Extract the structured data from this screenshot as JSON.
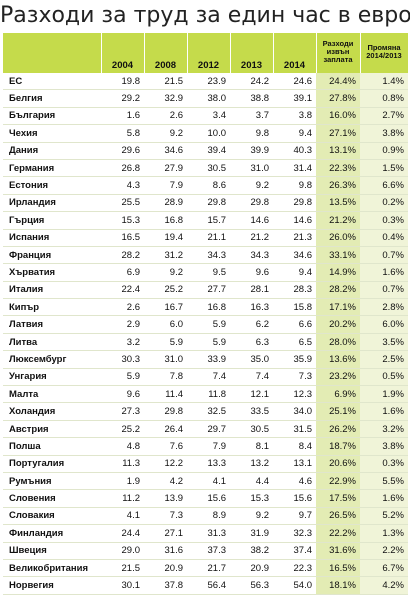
{
  "title": "Разходи за труд за един час в евро",
  "columns": [
    "",
    "2004",
    "2008",
    "2012",
    "2013",
    "2014",
    "Разходи извън заплата",
    "Промяна 2014/2013"
  ],
  "rows": [
    [
      "ЕС",
      "19.8",
      "21.5",
      "23.9",
      "24.2",
      "24.6",
      "24.4%",
      "1.4%"
    ],
    [
      "Белгия",
      "29.2",
      "32.9",
      "38.0",
      "38.8",
      "39.1",
      "27.8%",
      "0.8%"
    ],
    [
      "България",
      "1.6",
      "2.6",
      "3.4",
      "3.7",
      "3.8",
      "16.0%",
      "2.7%"
    ],
    [
      "Чехия",
      "5.8",
      "9.2",
      "10.0",
      "9.8",
      "9.4",
      "27.1%",
      "3.8%"
    ],
    [
      "Дания",
      "29.6",
      "34.6",
      "39.4",
      "39.9",
      "40.3",
      "13.1%",
      "0.9%"
    ],
    [
      "Германия",
      "26.8",
      "27.9",
      "30.5",
      "31.0",
      "31.4",
      "22.3%",
      "1.5%"
    ],
    [
      "Естония",
      "4.3",
      "7.9",
      "8.6",
      "9.2",
      "9.8",
      "26.3%",
      "6.6%"
    ],
    [
      "Ирландия",
      "25.5",
      "28.9",
      "29.8",
      "29.8",
      "29.8",
      "13.5%",
      "0.2%"
    ],
    [
      "Гърция",
      "15.3",
      "16.8",
      "15.7",
      "14.6",
      "14.6",
      "21.2%",
      "0.3%"
    ],
    [
      "Испания",
      "16.5",
      "19.4",
      "21.1",
      "21.2",
      "21.3",
      "26.0%",
      "0.4%"
    ],
    [
      "Франция",
      "28.2",
      "31.2",
      "34.3",
      "34.3",
      "34.6",
      "33.1%",
      "0.7%"
    ],
    [
      "Хърватия",
      "6.9",
      "9.2",
      "9.5",
      "9.6",
      "9.4",
      "14.9%",
      "1.6%"
    ],
    [
      "Италия",
      "22.4",
      "25.2",
      "27.7",
      "28.1",
      "28.3",
      "28.2%",
      "0.7%"
    ],
    [
      "Кипър",
      "2.6",
      "16.7",
      "16.8",
      "16.3",
      "15.8",
      "17.1%",
      "2.8%"
    ],
    [
      "Латвия",
      "2.9",
      "6.0",
      "5.9",
      "6.2",
      "6.6",
      "20.2%",
      "6.0%"
    ],
    [
      "Литва",
      "3.2",
      "5.9",
      "5.9",
      "6.3",
      "6.5",
      "28.0%",
      "3.5%"
    ],
    [
      "Люксембург",
      "30.3",
      "31.0",
      "33.9",
      "35.0",
      "35.9",
      "13.6%",
      "2.5%"
    ],
    [
      "Унгария",
      "5.9",
      "7.8",
      "7.4",
      "7.4",
      "7.3",
      "23.2%",
      "0.5%"
    ],
    [
      "Малта",
      "9.6",
      "11.4",
      "11.8",
      "12.1",
      "12.3",
      "6.9%",
      "1.9%"
    ],
    [
      "Холандия",
      "27.3",
      "29.8",
      "32.5",
      "33.5",
      "34.0",
      "25.1%",
      "1.6%"
    ],
    [
      "Австрия",
      "25.2",
      "26.4",
      "29.7",
      "30.5",
      "31.5",
      "26.2%",
      "3.2%"
    ],
    [
      "Полша",
      "4.8",
      "7.6",
      "7.9",
      "8.1",
      "8.4",
      "18.7%",
      "3.8%"
    ],
    [
      "Португалия",
      "11.3",
      "12.2",
      "13.3",
      "13.2",
      "13.1",
      "20.6%",
      "0.3%"
    ],
    [
      "Румъния",
      "1.9",
      "4.2",
      "4.1",
      "4.4",
      "4.6",
      "22.9%",
      "5.5%"
    ],
    [
      "Словения",
      "11.2",
      "13.9",
      "15.6",
      "15.3",
      "15.6",
      "17.5%",
      "1.6%"
    ],
    [
      "Словакия",
      "4.1",
      "7.3",
      "8.9",
      "9.2",
      "9.7",
      "26.5%",
      "5.2%"
    ],
    [
      "Финландия",
      "24.4",
      "27.1",
      "31.3",
      "31.9",
      "32.3",
      "22.2%",
      "1.3%"
    ],
    [
      "Швеция",
      "29.0",
      "31.6",
      "37.3",
      "38.2",
      "37.4",
      "31.6%",
      "2.2%"
    ],
    [
      "Великобритания",
      "21.5",
      "20.9",
      "21.7",
      "20.9",
      "22.3",
      "16.5%",
      "6.7%"
    ],
    [
      "Норвегия",
      "30.1",
      "37.8",
      "56.4",
      "56.3",
      "54.0",
      "18.1%",
      "4.2%"
    ]
  ]
}
